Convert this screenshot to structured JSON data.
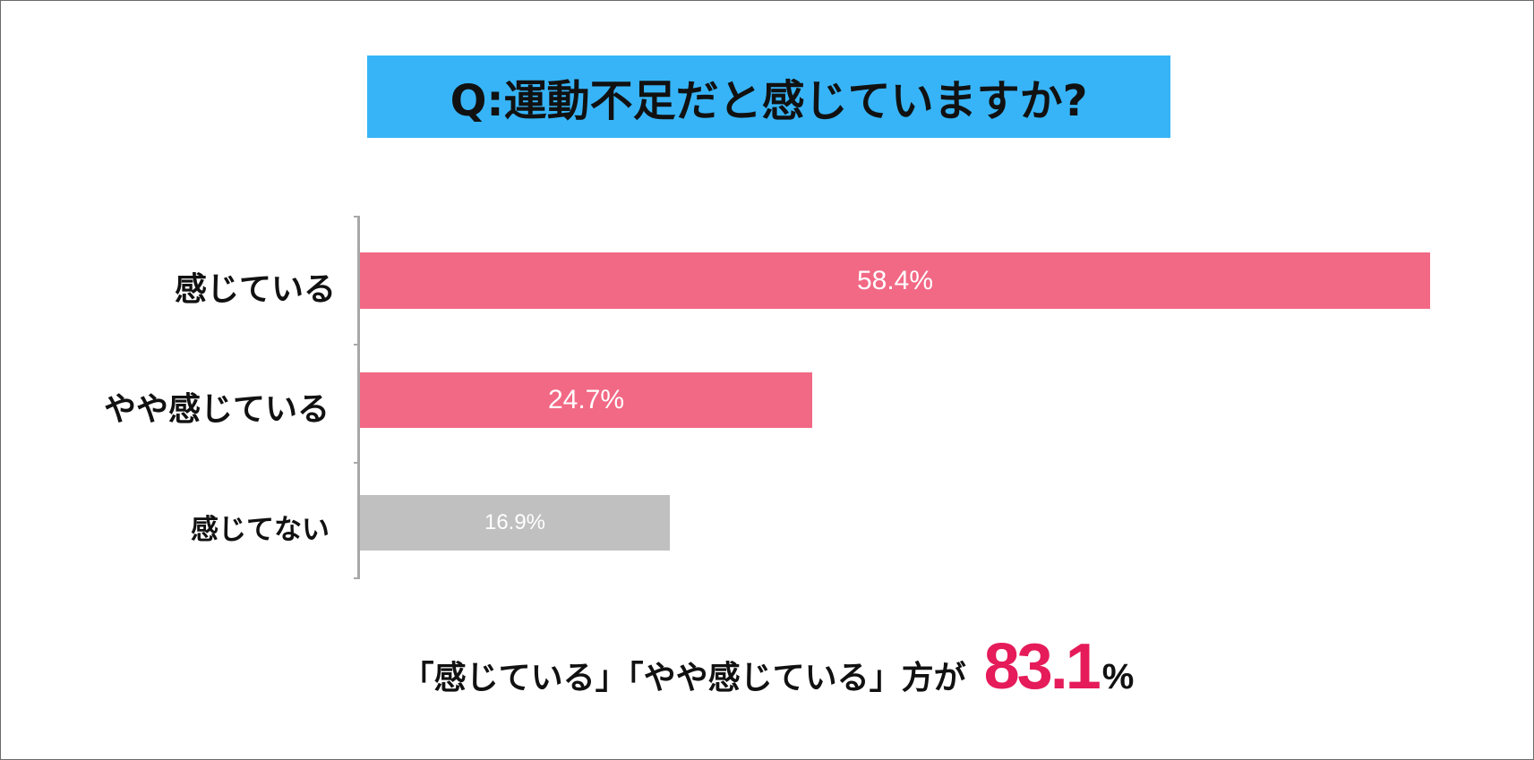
{
  "chart_data": {
    "type": "bar",
    "orientation": "horizontal",
    "title": "Q:運動不足だと感じていますか?",
    "categories": [
      "感じている",
      "やや感じている",
      "感じてない"
    ],
    "values": [
      58.4,
      24.7,
      16.9
    ],
    "value_labels": [
      "58.4%",
      "24.7%",
      "16.9%"
    ],
    "unit": "%",
    "bar_colors": [
      "#f26985",
      "#f26985",
      "#c0c0c0"
    ],
    "xlim": [
      0,
      58.4
    ],
    "grid": false,
    "legend": "none"
  },
  "summary": {
    "text": "「感じている」「やや感じている」方が",
    "value": "83.1",
    "unit": "%",
    "value_color": "#e51b5a"
  },
  "colors": {
    "title_background": "#37b4f7",
    "axis": "#a8a8a8"
  }
}
